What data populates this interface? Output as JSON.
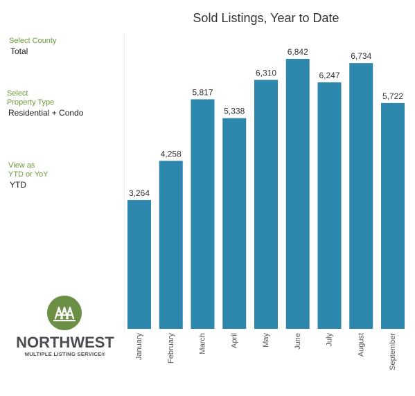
{
  "filters": {
    "county": {
      "label": "Select County",
      "value": "Total"
    },
    "property_type": {
      "label_line1": "Select",
      "label_line2": "Property Type",
      "value": "Residential + Condo"
    },
    "view": {
      "label_line1": "View as",
      "label_line2": "YTD or YoY",
      "value": "YTD"
    }
  },
  "logo": {
    "name": "NORTHWEST",
    "tagline": "MULTIPLE LISTING SERVICE®"
  },
  "colors": {
    "bar": "#2e88ad",
    "filter_label": "#6b9a3a",
    "logo_green": "#6b8f45"
  },
  "chart_data": {
    "type": "bar",
    "title": "Sold Listings, Year to Date",
    "categories": [
      "January",
      "February",
      "March",
      "April",
      "May",
      "June",
      "July",
      "August",
      "September"
    ],
    "values": [
      3264,
      4258,
      5817,
      5338,
      6310,
      6842,
      6247,
      6734,
      5722
    ],
    "value_labels": [
      "3,264",
      "4,258",
      "5,817",
      "5,338",
      "6,310",
      "6,842",
      "6,247",
      "6,734",
      "5,722"
    ],
    "xlabel": "",
    "ylabel": "",
    "ylim": [
      0,
      6842
    ],
    "grid": false,
    "legend": "none"
  }
}
